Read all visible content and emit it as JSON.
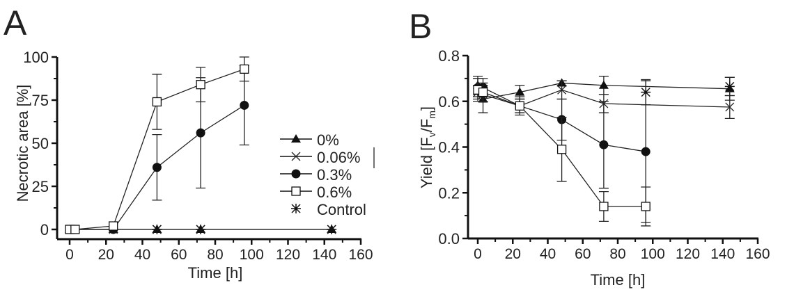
{
  "chart_data": [
    {
      "panel_label": "A",
      "type": "line",
      "xlabel": "Time [h]",
      "ylabel": "Necrotic area [%]",
      "xlim": [
        0,
        160
      ],
      "ylim": [
        0,
        100
      ],
      "xticks": [
        0,
        20,
        40,
        60,
        80,
        100,
        120,
        140,
        160
      ],
      "yticks": [
        0,
        25,
        50,
        75,
        100
      ],
      "legend": {
        "placement": "right",
        "entries": [
          {
            "label": "0%",
            "marker": "triangle"
          },
          {
            "label": "0.06%",
            "marker": "x"
          },
          {
            "label": "0.3%",
            "marker": "circle"
          },
          {
            "label": "0.6%",
            "marker": "square"
          },
          {
            "label": "Control",
            "marker": "asterisk"
          }
        ]
      },
      "series": [
        {
          "name": "0%",
          "marker": "triangle",
          "x": [
            0,
            3,
            24,
            48,
            72,
            144
          ],
          "y": [
            0,
            0,
            0,
            0,
            0,
            0
          ],
          "err": [
            0,
            0,
            0,
            0,
            0,
            0
          ]
        },
        {
          "name": "0.06%",
          "marker": "x",
          "x": [
            0,
            3,
            24,
            48,
            72,
            144
          ],
          "y": [
            0,
            0,
            0,
            0,
            0,
            0
          ],
          "err": [
            0,
            0,
            0,
            0,
            0,
            0
          ]
        },
        {
          "name": "0.3%",
          "marker": "circle",
          "x": [
            0,
            3,
            24,
            48,
            72,
            96
          ],
          "y": [
            0,
            0,
            0,
            36,
            56,
            72
          ],
          "err": [
            0,
            0,
            0,
            19,
            32,
            23
          ]
        },
        {
          "name": "0.6%",
          "marker": "square",
          "x": [
            0,
            3,
            24,
            48,
            72,
            96
          ],
          "y": [
            0,
            0,
            2,
            74,
            84,
            93
          ],
          "err": [
            0,
            0,
            0,
            16,
            10,
            7
          ]
        },
        {
          "name": "Control",
          "marker": "asterisk",
          "x": [
            48,
            72,
            144
          ],
          "y": [
            0,
            0,
            0
          ],
          "err": [
            0,
            0,
            0
          ]
        }
      ]
    },
    {
      "panel_label": "B",
      "type": "line",
      "xlabel": "Time [h]",
      "ylabel": "Yield [Fv/Fm]",
      "ylabel_parts": {
        "main": "Yield [F",
        "sub1": "v",
        "mid": "/F",
        "sub2": "m",
        "end": "]"
      },
      "xlim": [
        0,
        160
      ],
      "ylim": [
        0,
        0.8
      ],
      "xticks": [
        0,
        20,
        40,
        60,
        80,
        100,
        120,
        140,
        160
      ],
      "yticks": [
        "0.0",
        "0.2",
        "0.4",
        "0.6",
        "0.8"
      ],
      "series": [
        {
          "name": "0%",
          "marker": "triangle",
          "x": [
            0,
            3,
            24,
            48,
            72,
            144
          ],
          "y": [
            0.67,
            0.61,
            0.64,
            0.68,
            0.67,
            0.655
          ],
          "err": [
            0.04,
            0.06,
            0.03,
            0.01,
            0.04,
            0.05
          ]
        },
        {
          "name": "0.06%",
          "marker": "x",
          "x": [
            0,
            3,
            24,
            48,
            72,
            144
          ],
          "y": [
            0.64,
            0.63,
            0.58,
            0.65,
            0.59,
            0.575
          ],
          "err": [
            0.03,
            0.03,
            0.03,
            0.04,
            0.04,
            0.05
          ]
        },
        {
          "name": "0.3%",
          "marker": "circle",
          "x": [
            0,
            3,
            24,
            48,
            72,
            96
          ],
          "y": [
            0.66,
            0.66,
            0.58,
            0.52,
            0.41,
            0.38
          ],
          "err": [
            0.04,
            0.04,
            0.03,
            0.09,
            0.19,
            0.31
          ]
        },
        {
          "name": "0.6%",
          "marker": "square",
          "x": [
            0,
            3,
            24,
            48,
            72,
            96
          ],
          "y": [
            0.65,
            0.64,
            0.58,
            0.39,
            0.14,
            0.14
          ],
          "err": [
            0.05,
            0.04,
            0.04,
            0.14,
            0.065,
            0.085
          ]
        },
        {
          "name": "Control",
          "marker": "asterisk",
          "x": [
            96,
            144
          ],
          "y": [
            0.64,
            0.665
          ],
          "err": [
            0.055,
            0.04
          ]
        }
      ]
    }
  ]
}
